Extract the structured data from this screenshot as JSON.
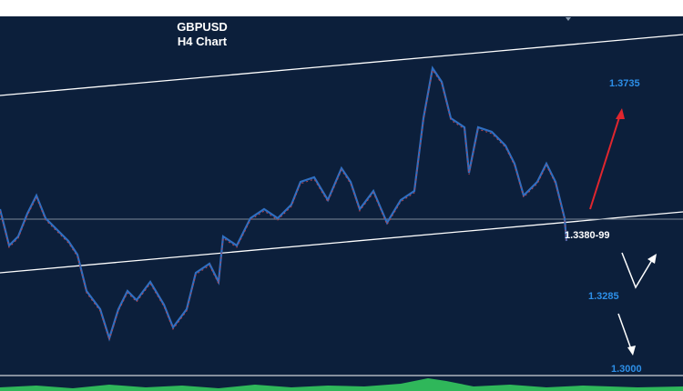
{
  "header": {
    "title": "GBPUSD",
    "subtitle": "H4  Chart"
  },
  "levels": {
    "target_up": "1.3735",
    "current": "1.3380-99",
    "support": "1.3285",
    "target_down": "1.3000"
  }
}
